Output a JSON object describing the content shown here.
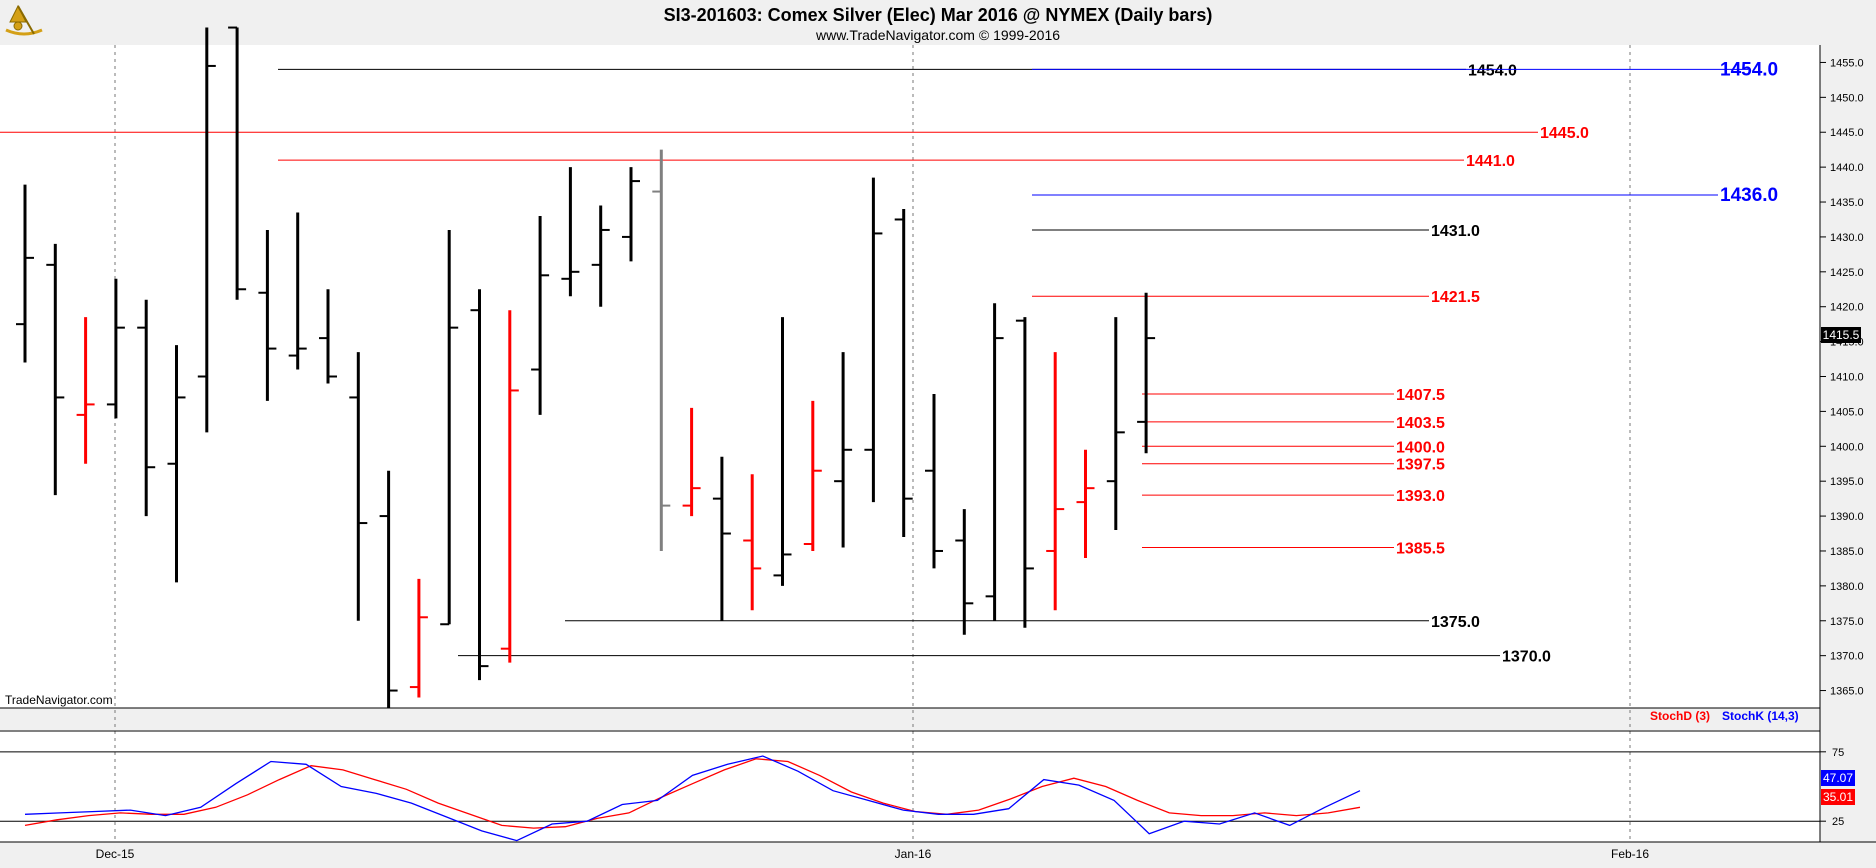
{
  "header": {
    "title": "SI3-201603:  Comex Silver (Elec) Mar 2016 @ NYMEX  (Daily bars)",
    "subtitle": "www.TradeNavigator.com © 1999-2016"
  },
  "watermark": "TradeNavigator.com",
  "last_price_tag": "1415.5",
  "legend": {
    "stoch_d": "StochD (3)",
    "stoch_k": "StochK (14,3)"
  },
  "stoch_values": {
    "k": "47.07",
    "d": "35.01"
  },
  "colors": {
    "up": "#000000",
    "down": "#ff0000",
    "gray": "#808080",
    "stoch_k": "#0000ff",
    "stoch_d": "#ff0000",
    "level_black": "#000000",
    "level_red": "#ff0000",
    "level_blue": "#0000ff"
  },
  "chart_data": [
    {
      "type": "ohlc",
      "title": "SI3-201603:  Comex Silver (Elec) Mar 2016 @ NYMEX  (Daily bars)",
      "x_ticks": [
        "Dec-15",
        "Jan-16",
        "Feb-16"
      ],
      "y_ticks": [
        1365.0,
        1370.0,
        1375.0,
        1380.0,
        1385.0,
        1390.0,
        1395.0,
        1400.0,
        1405.0,
        1410.0,
        1415.0,
        1420.0,
        1425.0,
        1430.0,
        1435.0,
        1440.0,
        1445.0,
        1450.0,
        1455.0
      ],
      "ylim": [
        1362.5,
        1457.5
      ],
      "grid": "vertical dashed",
      "bars": [
        {
          "o": 1417.5,
          "h": 1437.5,
          "l": 1412.0,
          "c": 1427.0,
          "color": "up"
        },
        {
          "o": 1426.0,
          "h": 1429.0,
          "l": 1393.0,
          "c": 1407.0,
          "color": "up"
        },
        {
          "o": 1404.5,
          "h": 1418.5,
          "l": 1397.5,
          "c": 1406.0,
          "color": "down"
        },
        {
          "o": 1406.0,
          "h": 1424.0,
          "l": 1404.0,
          "c": 1417.0,
          "color": "up"
        },
        {
          "o": 1417.0,
          "h": 1421.0,
          "l": 1390.0,
          "c": 1397.0,
          "color": "up"
        },
        {
          "o": 1397.5,
          "h": 1414.5,
          "l": 1380.5,
          "c": 1407.0,
          "color": "up"
        },
        {
          "o": 1410.0,
          "h": 1460.0,
          "l": 1402.0,
          "c": 1454.5,
          "color": "up"
        },
        {
          "o": 1460.0,
          "h": 1460.0,
          "l": 1421.0,
          "c": 1422.5,
          "color": "up"
        },
        {
          "o": 1422.0,
          "h": 1431.0,
          "l": 1406.5,
          "c": 1414.0,
          "color": "up"
        },
        {
          "o": 1413.0,
          "h": 1433.5,
          "l": 1411.0,
          "c": 1414.0,
          "color": "up"
        },
        {
          "o": 1415.5,
          "h": 1422.5,
          "l": 1409.0,
          "c": 1410.0,
          "color": "up"
        },
        {
          "o": 1407.0,
          "h": 1413.5,
          "l": 1375.0,
          "c": 1389.0,
          "color": "up"
        },
        {
          "o": 1390.0,
          "h": 1396.5,
          "l": 1362.5,
          "c": 1365.0,
          "color": "up"
        },
        {
          "o": 1365.5,
          "h": 1381.0,
          "l": 1364.0,
          "c": 1375.5,
          "color": "down"
        },
        {
          "o": 1374.5,
          "h": 1431.0,
          "l": 1374.5,
          "c": 1417.0,
          "color": "up"
        },
        {
          "o": 1419.5,
          "h": 1422.5,
          "l": 1366.5,
          "c": 1368.5,
          "color": "up"
        },
        {
          "o": 1371.0,
          "h": 1419.5,
          "l": 1369.0,
          "c": 1408.0,
          "color": "down"
        },
        {
          "o": 1411.0,
          "h": 1433.0,
          "l": 1404.5,
          "c": 1424.5,
          "color": "up"
        },
        {
          "o": 1424.0,
          "h": 1440.0,
          "l": 1421.5,
          "c": 1425.0,
          "color": "up"
        },
        {
          "o": 1426.0,
          "h": 1434.5,
          "l": 1420.0,
          "c": 1431.0,
          "color": "up"
        },
        {
          "o": 1430.0,
          "h": 1440.0,
          "l": 1426.5,
          "c": 1438.0,
          "color": "up"
        },
        {
          "o": 1436.5,
          "h": 1442.5,
          "l": 1385.0,
          "c": 1391.5,
          "color": "gray"
        },
        {
          "o": 1391.5,
          "h": 1405.5,
          "l": 1390.0,
          "c": 1394.0,
          "color": "down"
        },
        {
          "o": 1392.5,
          "h": 1398.5,
          "l": 1375.0,
          "c": 1387.5,
          "color": "up"
        },
        {
          "o": 1386.5,
          "h": 1396.0,
          "l": 1376.5,
          "c": 1382.5,
          "color": "down"
        },
        {
          "o": 1381.5,
          "h": 1418.5,
          "l": 1380.0,
          "c": 1384.5,
          "color": "up"
        },
        {
          "o": 1386.0,
          "h": 1406.5,
          "l": 1385.0,
          "c": 1396.5,
          "color": "down"
        },
        {
          "o": 1395.0,
          "h": 1413.5,
          "l": 1385.5,
          "c": 1399.5,
          "color": "up"
        },
        {
          "o": 1399.5,
          "h": 1438.5,
          "l": 1392.0,
          "c": 1430.5,
          "color": "up"
        },
        {
          "o": 1432.5,
          "h": 1434.0,
          "l": 1387.0,
          "c": 1392.5,
          "color": "up"
        },
        {
          "o": 1396.5,
          "h": 1407.5,
          "l": 1382.5,
          "c": 1385.0,
          "color": "up"
        },
        {
          "o": 1386.5,
          "h": 1391.0,
          "l": 1373.0,
          "c": 1377.5,
          "color": "up"
        },
        {
          "o": 1378.5,
          "h": 1420.5,
          "l": 1375.0,
          "c": 1415.5,
          "color": "up"
        },
        {
          "o": 1418.0,
          "h": 1418.5,
          "l": 1374.0,
          "c": 1382.5,
          "color": "up"
        },
        {
          "o": 1385.0,
          "h": 1413.5,
          "l": 1376.5,
          "c": 1391.0,
          "color": "down"
        },
        {
          "o": 1392.0,
          "h": 1399.5,
          "l": 1384.0,
          "c": 1394.0,
          "color": "down"
        },
        {
          "o": 1395.0,
          "h": 1418.5,
          "l": 1388.0,
          "c": 1402.0,
          "color": "up"
        },
        {
          "o": 1403.5,
          "h": 1422.0,
          "l": 1399.0,
          "c": 1415.5,
          "color": "up"
        }
      ],
      "levels": [
        {
          "label": "1454.0",
          "value": 1454.0,
          "color": "level_black"
        },
        {
          "label": "1454.0",
          "value": 1454.0,
          "color": "level_blue"
        },
        {
          "label": "1445.0",
          "value": 1445.0,
          "color": "level_red"
        },
        {
          "label": "1441.0",
          "value": 1441.0,
          "color": "level_red"
        },
        {
          "label": "1436.0",
          "value": 1436.0,
          "color": "level_blue"
        },
        {
          "label": "1431.0",
          "value": 1431.0,
          "color": "level_black"
        },
        {
          "label": "1421.5",
          "value": 1421.5,
          "color": "level_red"
        },
        {
          "label": "1407.5",
          "value": 1407.5,
          "color": "level_red"
        },
        {
          "label": "1403.5",
          "value": 1403.5,
          "color": "level_red"
        },
        {
          "label": "1400.0",
          "value": 1400.0,
          "color": "level_red"
        },
        {
          "label": "1397.5",
          "value": 1397.5,
          "color": "level_red"
        },
        {
          "label": "1393.0",
          "value": 1393.0,
          "color": "level_red"
        },
        {
          "label": "1385.5",
          "value": 1385.5,
          "color": "level_red"
        },
        {
          "label": "1375.0",
          "value": 1375.0,
          "color": "level_black"
        },
        {
          "label": "1370.0",
          "value": 1370.0,
          "color": "level_black"
        }
      ]
    },
    {
      "type": "line",
      "y_ticks": [
        25,
        75
      ],
      "ylim": [
        10,
        90
      ],
      "series": [
        {
          "name": "StochD (3)",
          "color": "stoch_d",
          "values": [
            22,
            26,
            29,
            31,
            30,
            30,
            35,
            44,
            55,
            65,
            62,
            55,
            48,
            38,
            30,
            22,
            20,
            21,
            27,
            31,
            42,
            52,
            62,
            70,
            68,
            58,
            46,
            38,
            32,
            30,
            33,
            41,
            50,
            56,
            50,
            40,
            31,
            29,
            29,
            31,
            29,
            31,
            35
          ]
        },
        {
          "name": "StochK (14,3)",
          "color": "stoch_k",
          "values": [
            30,
            31,
            32,
            33,
            29,
            35,
            52,
            68,
            66,
            50,
            45,
            38,
            28,
            18,
            11,
            23,
            25,
            37,
            40,
            58,
            66,
            72,
            61,
            47,
            40,
            33,
            30,
            30,
            34,
            55,
            51,
            40,
            16,
            25,
            23,
            31,
            22,
            35,
            47
          ]
        }
      ]
    }
  ]
}
